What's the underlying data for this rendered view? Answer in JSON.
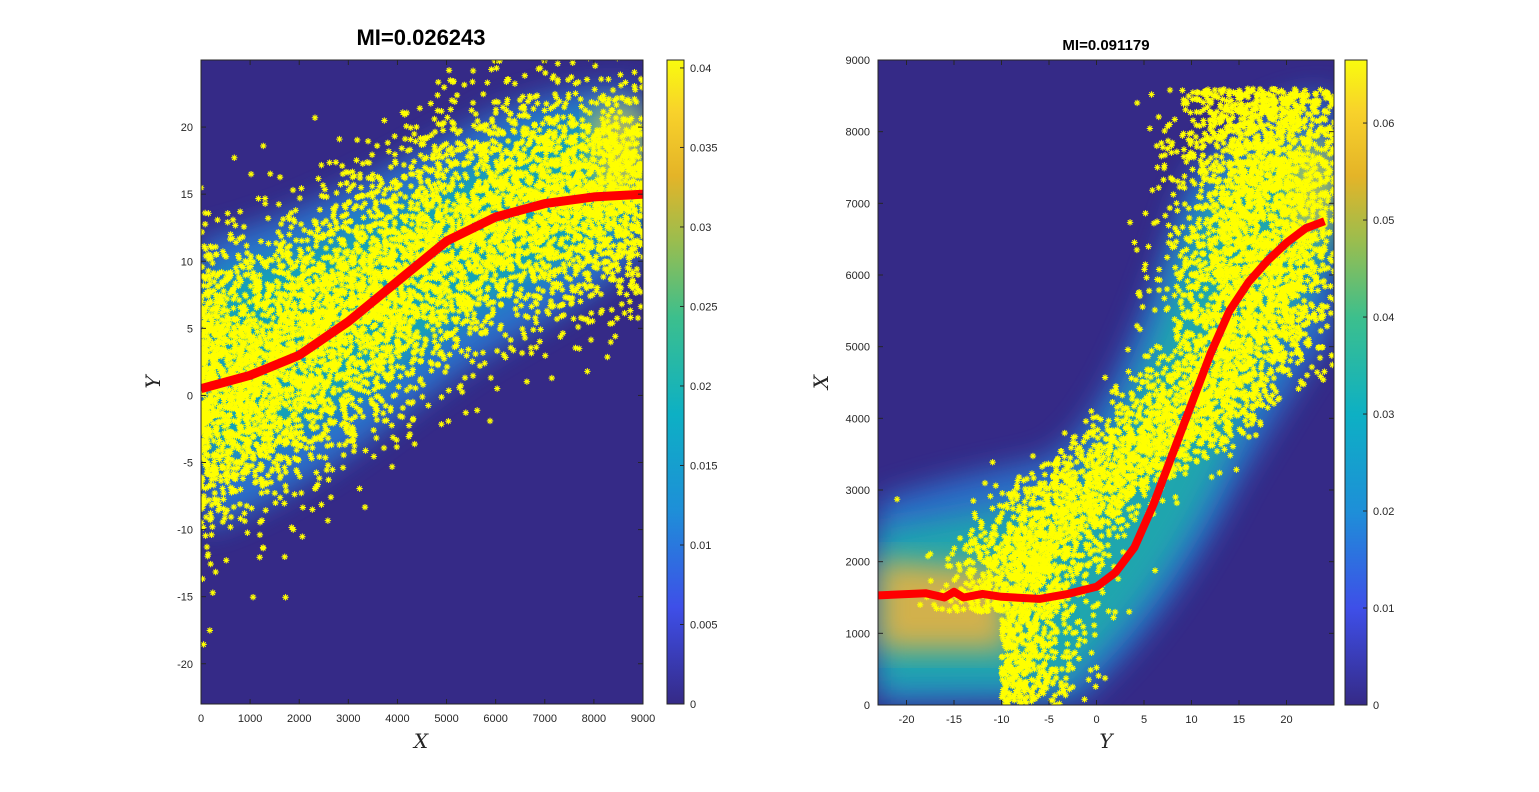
{
  "chart_data": [
    {
      "type": "scatter",
      "title": "MI=0.026243",
      "xlabel": "X",
      "ylabel": "Y",
      "xlim": [
        0,
        9000
      ],
      "ylim": [
        -23,
        25
      ],
      "xticks": [
        "0",
        "1000",
        "2000",
        "3000",
        "4000",
        "5000",
        "6000",
        "7000",
        "8000",
        "9000"
      ],
      "yticks": [
        "20",
        "15",
        "10",
        "5",
        "0",
        "-5",
        "-10",
        "-15",
        "-20"
      ],
      "colorbar": {
        "min": 0,
        "max": 0.0405,
        "ticks": [
          "0",
          "0.005",
          "0.01",
          "0.015",
          "0.02",
          "0.025",
          "0.03",
          "0.035",
          "0.04"
        ]
      },
      "background": "heatmap of conditional density of Y given X",
      "series": [
        {
          "kind": "scatter",
          "marker": "asterisk",
          "color": "#ffff00"
        },
        {
          "kind": "line",
          "color": "#ff0000",
          "x": [
            0,
            1000,
            2000,
            3000,
            4000,
            5000,
            6000,
            7000,
            8000,
            9000
          ],
          "y": [
            0.5,
            1.5,
            3.0,
            5.5,
            8.5,
            11.5,
            13.3,
            14.3,
            14.8,
            15.0
          ]
        }
      ]
    },
    {
      "type": "scatter",
      "title": "MI=0.091179",
      "xlabel": "Y",
      "ylabel": "X",
      "xlim": [
        -23,
        25
      ],
      "ylim": [
        0,
        9000
      ],
      "xticks": [
        "-20",
        "-15",
        "-10",
        "-5",
        "0",
        "5",
        "10",
        "15",
        "20"
      ],
      "yticks": [
        "9000",
        "8000",
        "7000",
        "6000",
        "5000",
        "4000",
        "3000",
        "2000",
        "1000",
        "0"
      ],
      "colorbar": {
        "min": 0,
        "max": 0.0665,
        "ticks": [
          "0",
          "0.01",
          "0.02",
          "0.03",
          "0.04",
          "0.05",
          "0.06"
        ]
      },
      "background": "heatmap of conditional density of X given Y",
      "series": [
        {
          "kind": "scatter",
          "marker": "asterisk",
          "color": "#ffff00"
        },
        {
          "kind": "line",
          "color": "#ff0000",
          "x": [
            -23,
            -18,
            -16,
            -15,
            -14,
            -12,
            -10,
            -6,
            -3,
            0,
            2,
            4,
            6,
            8,
            10,
            12,
            14,
            16,
            18,
            20,
            22,
            24
          ],
          "y": [
            1530,
            1560,
            1500,
            1580,
            1500,
            1550,
            1510,
            1480,
            1550,
            1650,
            1850,
            2200,
            2800,
            3500,
            4200,
            4900,
            5500,
            5900,
            6200,
            6450,
            6650,
            6750
          ]
        }
      ]
    }
  ]
}
